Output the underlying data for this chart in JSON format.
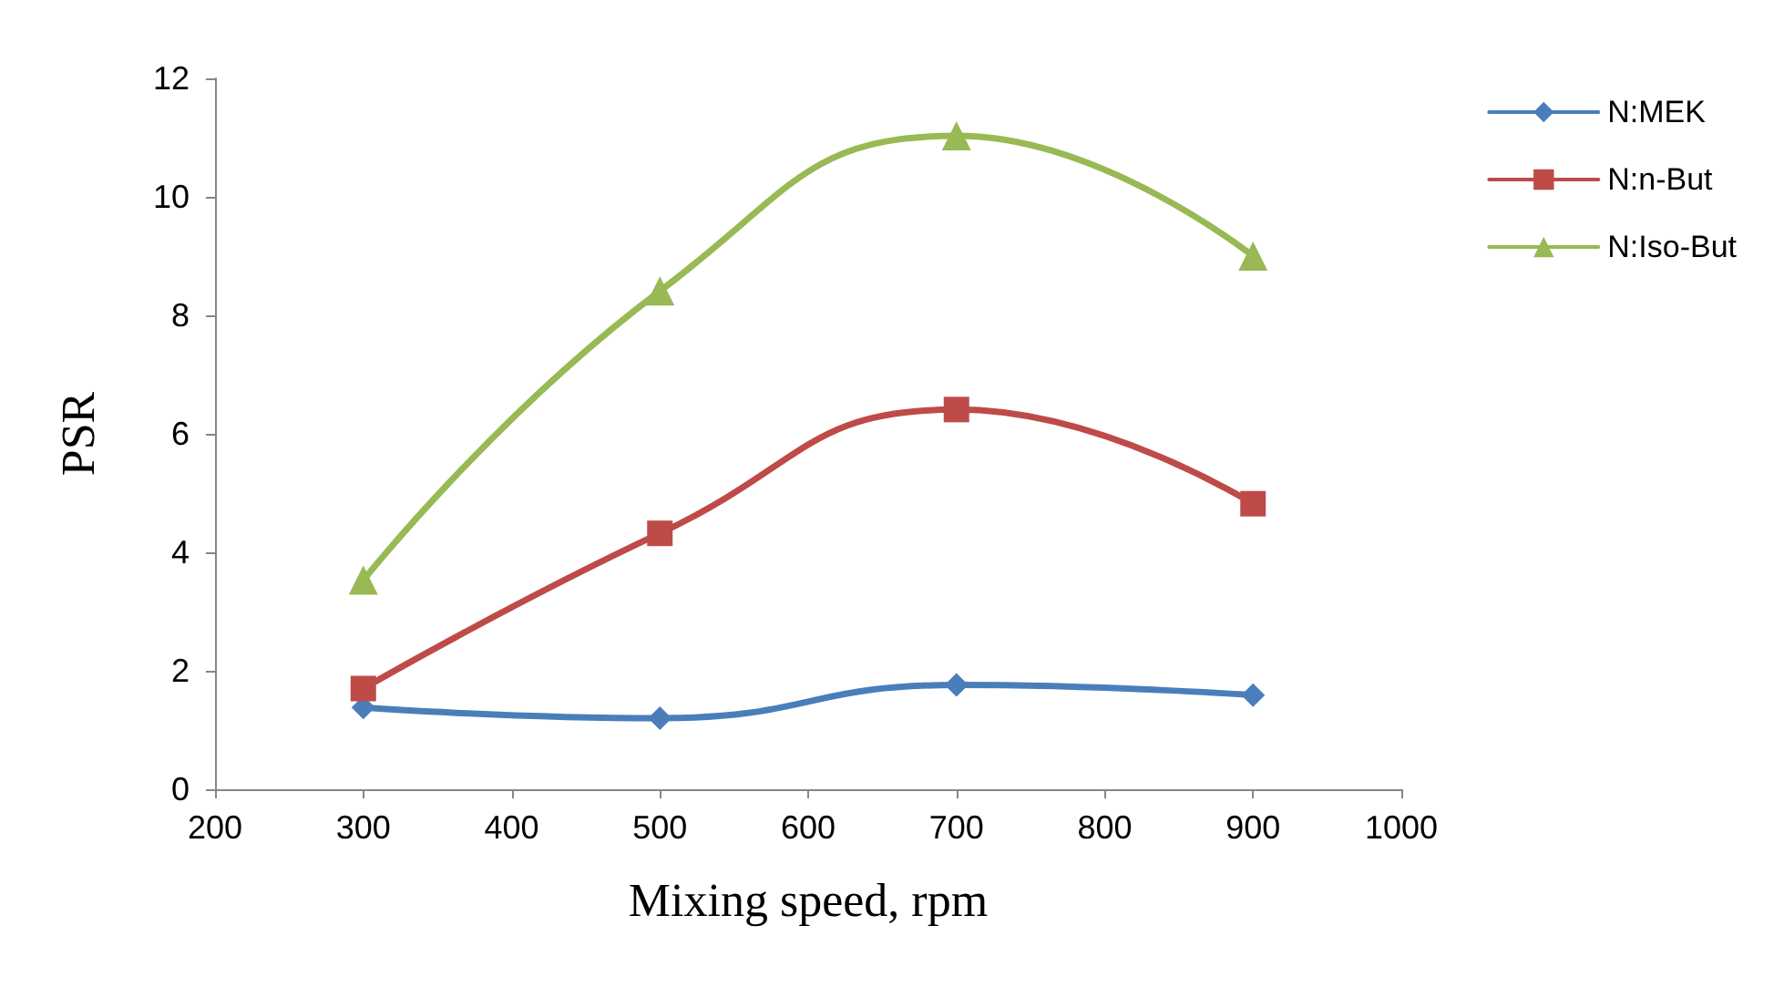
{
  "chart_data": {
    "type": "line",
    "xlabel": "Mixing speed, rpm",
    "ylabel": "PSR",
    "x": [
      300,
      500,
      700,
      900
    ],
    "series": [
      {
        "name": "N:MEK",
        "color": "#4a7ebb",
        "marker": "diamond",
        "values": [
          1.38,
          1.2,
          1.76,
          1.59
        ]
      },
      {
        "name": "N:n-But",
        "color": "#be4b48",
        "marker": "square",
        "values": [
          1.7,
          4.32,
          6.41,
          4.82
        ]
      },
      {
        "name": "N:Iso-But",
        "color": "#98b954",
        "marker": "triangle",
        "values": [
          3.53,
          8.41,
          11.03,
          9.0
        ]
      }
    ],
    "xlim": [
      200,
      1000
    ],
    "xticks": [
      200,
      300,
      400,
      500,
      600,
      700,
      800,
      900,
      1000
    ],
    "ylim": [
      0,
      12
    ],
    "yticks": [
      0,
      2,
      4,
      6,
      8,
      10,
      12
    ],
    "grid": false,
    "legend": "right",
    "line_style": "solid"
  }
}
